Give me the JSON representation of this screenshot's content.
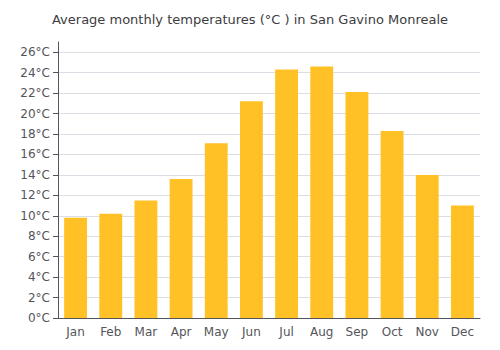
{
  "chart_data": {
    "type": "bar",
    "title": "Average monthly temperatures (°C ) in San Gavino Monreale",
    "categories": [
      "Jan",
      "Feb",
      "Mar",
      "Apr",
      "May",
      "Jun",
      "Jul",
      "Aug",
      "Sep",
      "Oct",
      "Nov",
      "Dec"
    ],
    "values": [
      9.8,
      10.2,
      11.5,
      13.6,
      17.1,
      21.2,
      24.3,
      24.6,
      22.1,
      18.3,
      14.0,
      11.0
    ],
    "color": "#FFC125",
    "ylim": [
      0,
      27
    ],
    "yticks": [
      {
        "value": 0,
        "label": "0°C"
      },
      {
        "value": 2,
        "label": "2°C"
      },
      {
        "value": 4,
        "label": "4°C"
      },
      {
        "value": 6,
        "label": "6°C"
      },
      {
        "value": 8,
        "label": "8°C"
      },
      {
        "value": 10,
        "label": "10°C"
      },
      {
        "value": 12,
        "label": "12°C"
      },
      {
        "value": 14,
        "label": "14°C"
      },
      {
        "value": 16,
        "label": "16°C"
      },
      {
        "value": 18,
        "label": "18°C"
      },
      {
        "value": 20,
        "label": "20°C"
      },
      {
        "value": 22,
        "label": "22°C"
      },
      {
        "value": 24,
        "label": "24°C"
      },
      {
        "value": 26,
        "label": "26°C"
      }
    ],
    "grid": true
  }
}
